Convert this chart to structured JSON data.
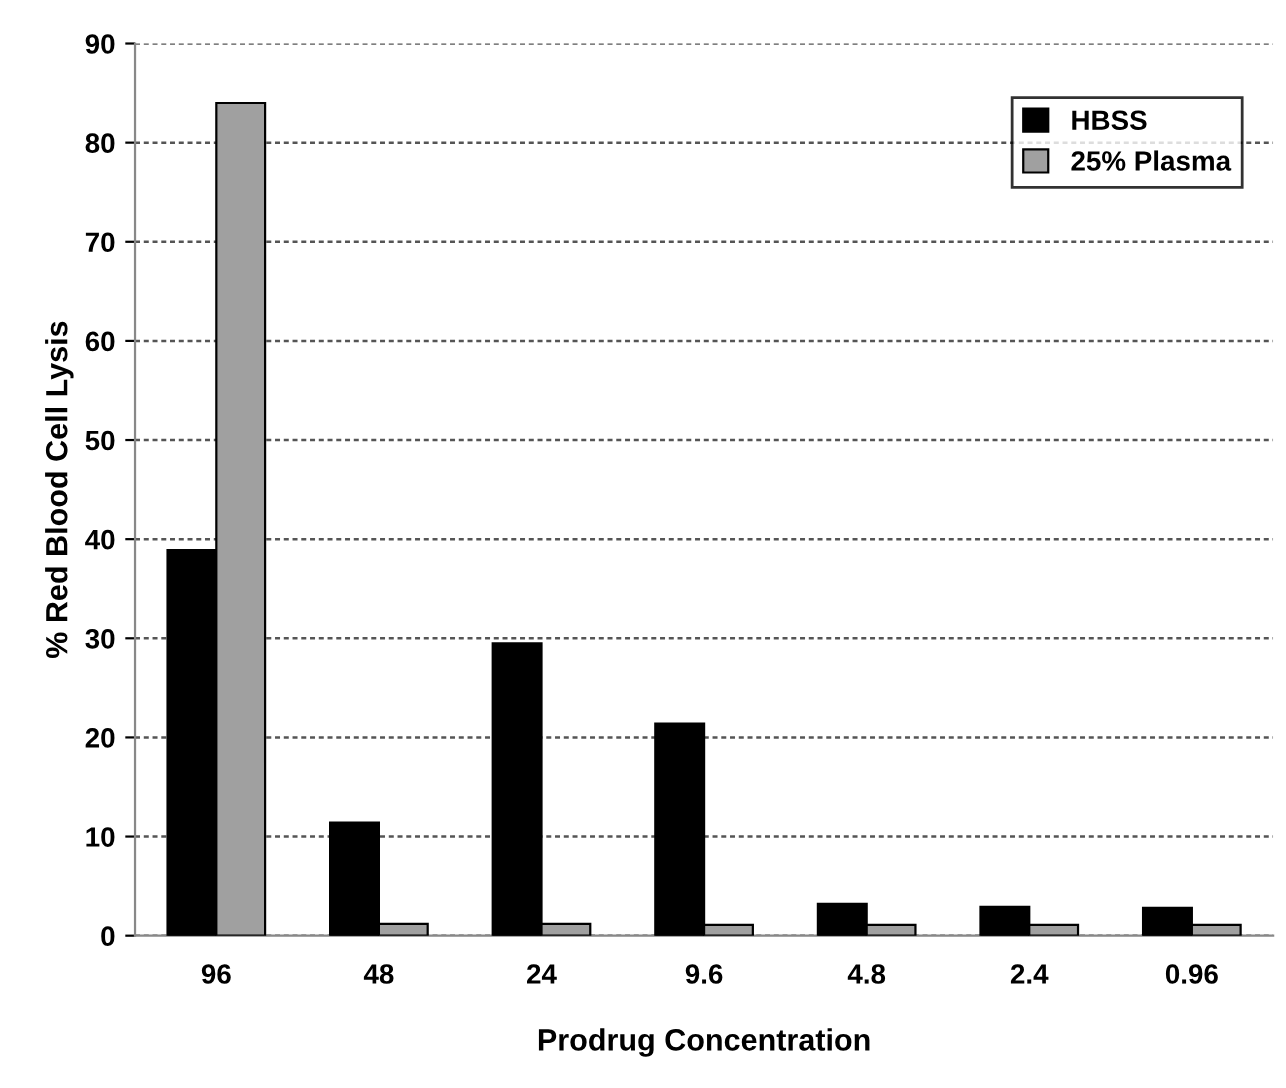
{
  "chart_data": {
    "type": "bar",
    "xlabel": "Prodrug Concentration",
    "ylabel": "% Red Blood Cell Lysis",
    "categories": [
      "96",
      "48",
      "24",
      "9.6",
      "4.8",
      "2.4",
      "0.96"
    ],
    "series": [
      {
        "name": "HBSS",
        "color": "#000000",
        "values": [
          38.9,
          11.4,
          29.5,
          21.4,
          3.2,
          2.9,
          2.8
        ]
      },
      {
        "name": "25% Plasma",
        "color": "#a0a0a0",
        "values": [
          84,
          1.2,
          1.2,
          1.1,
          1.1,
          1.1,
          1.1
        ]
      }
    ],
    "ylim": [
      0,
      90
    ],
    "yticks": [
      0,
      10,
      20,
      30,
      40,
      50,
      60,
      70,
      80,
      90
    ],
    "grid": "y",
    "legend": "top right"
  }
}
